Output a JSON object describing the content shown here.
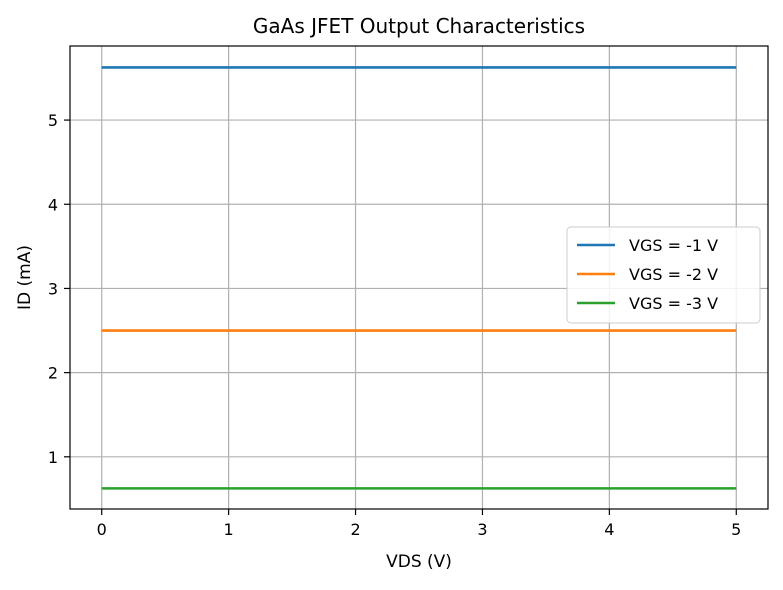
{
  "chart_data": {
    "type": "line",
    "title": "GaAs JFET Output Characteristics",
    "xlabel": "VDS (V)",
    "ylabel": "ID (mA)",
    "xlim": [
      -0.25,
      5.25
    ],
    "ylim": [
      0.38,
      5.88
    ],
    "xticks": [
      0,
      1,
      2,
      3,
      4,
      5
    ],
    "yticks": [
      1,
      2,
      3,
      4,
      5
    ],
    "grid": true,
    "legend_position": "center-right",
    "series": [
      {
        "name": "VGS = -1 V",
        "color": "#1f77b4",
        "x": [
          0,
          5
        ],
        "y": [
          5.625,
          5.625
        ]
      },
      {
        "name": "VGS = -2 V",
        "color": "#ff7f0e",
        "x": [
          0,
          5
        ],
        "y": [
          2.5,
          2.5
        ]
      },
      {
        "name": "VGS = -3 V",
        "color": "#2ca02c",
        "x": [
          0,
          5
        ],
        "y": [
          0.625,
          0.625
        ]
      }
    ]
  }
}
